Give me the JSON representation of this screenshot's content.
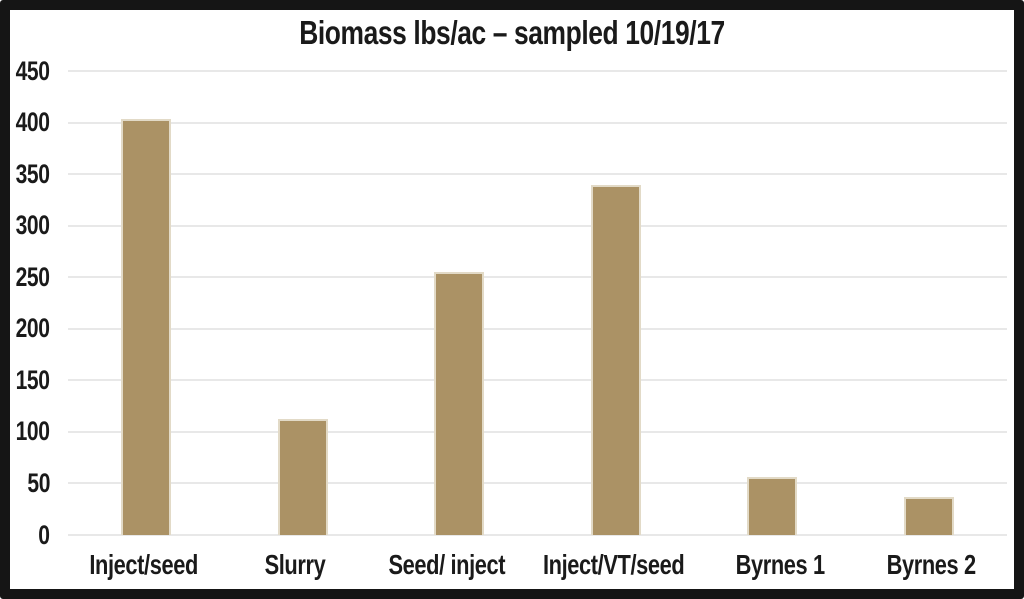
{
  "chart_data": {
    "type": "bar",
    "title": "Biomass lbs/ac – sampled 10/19/17",
    "categories": [
      "Inject/seed",
      "Slurry",
      "Seed/ inject",
      "Inject/VT/seed",
      "Byrnes 1",
      "Byrnes 2"
    ],
    "values": [
      403,
      113,
      255,
      339,
      56,
      37
    ],
    "xlabel": "",
    "ylabel": "",
    "ylim": [
      0,
      450
    ],
    "yticks": [
      0,
      50,
      100,
      150,
      200,
      250,
      300,
      350,
      400,
      450
    ],
    "grid": true,
    "gridline_color": "#e8e8e8",
    "legend_position": "none",
    "bar_color": "#ab9265",
    "bar_edge_color": "#e2dac7",
    "text_color": "#1a1a1a",
    "frame_border_color": "#151515",
    "plot_background": "#ffffff"
  }
}
